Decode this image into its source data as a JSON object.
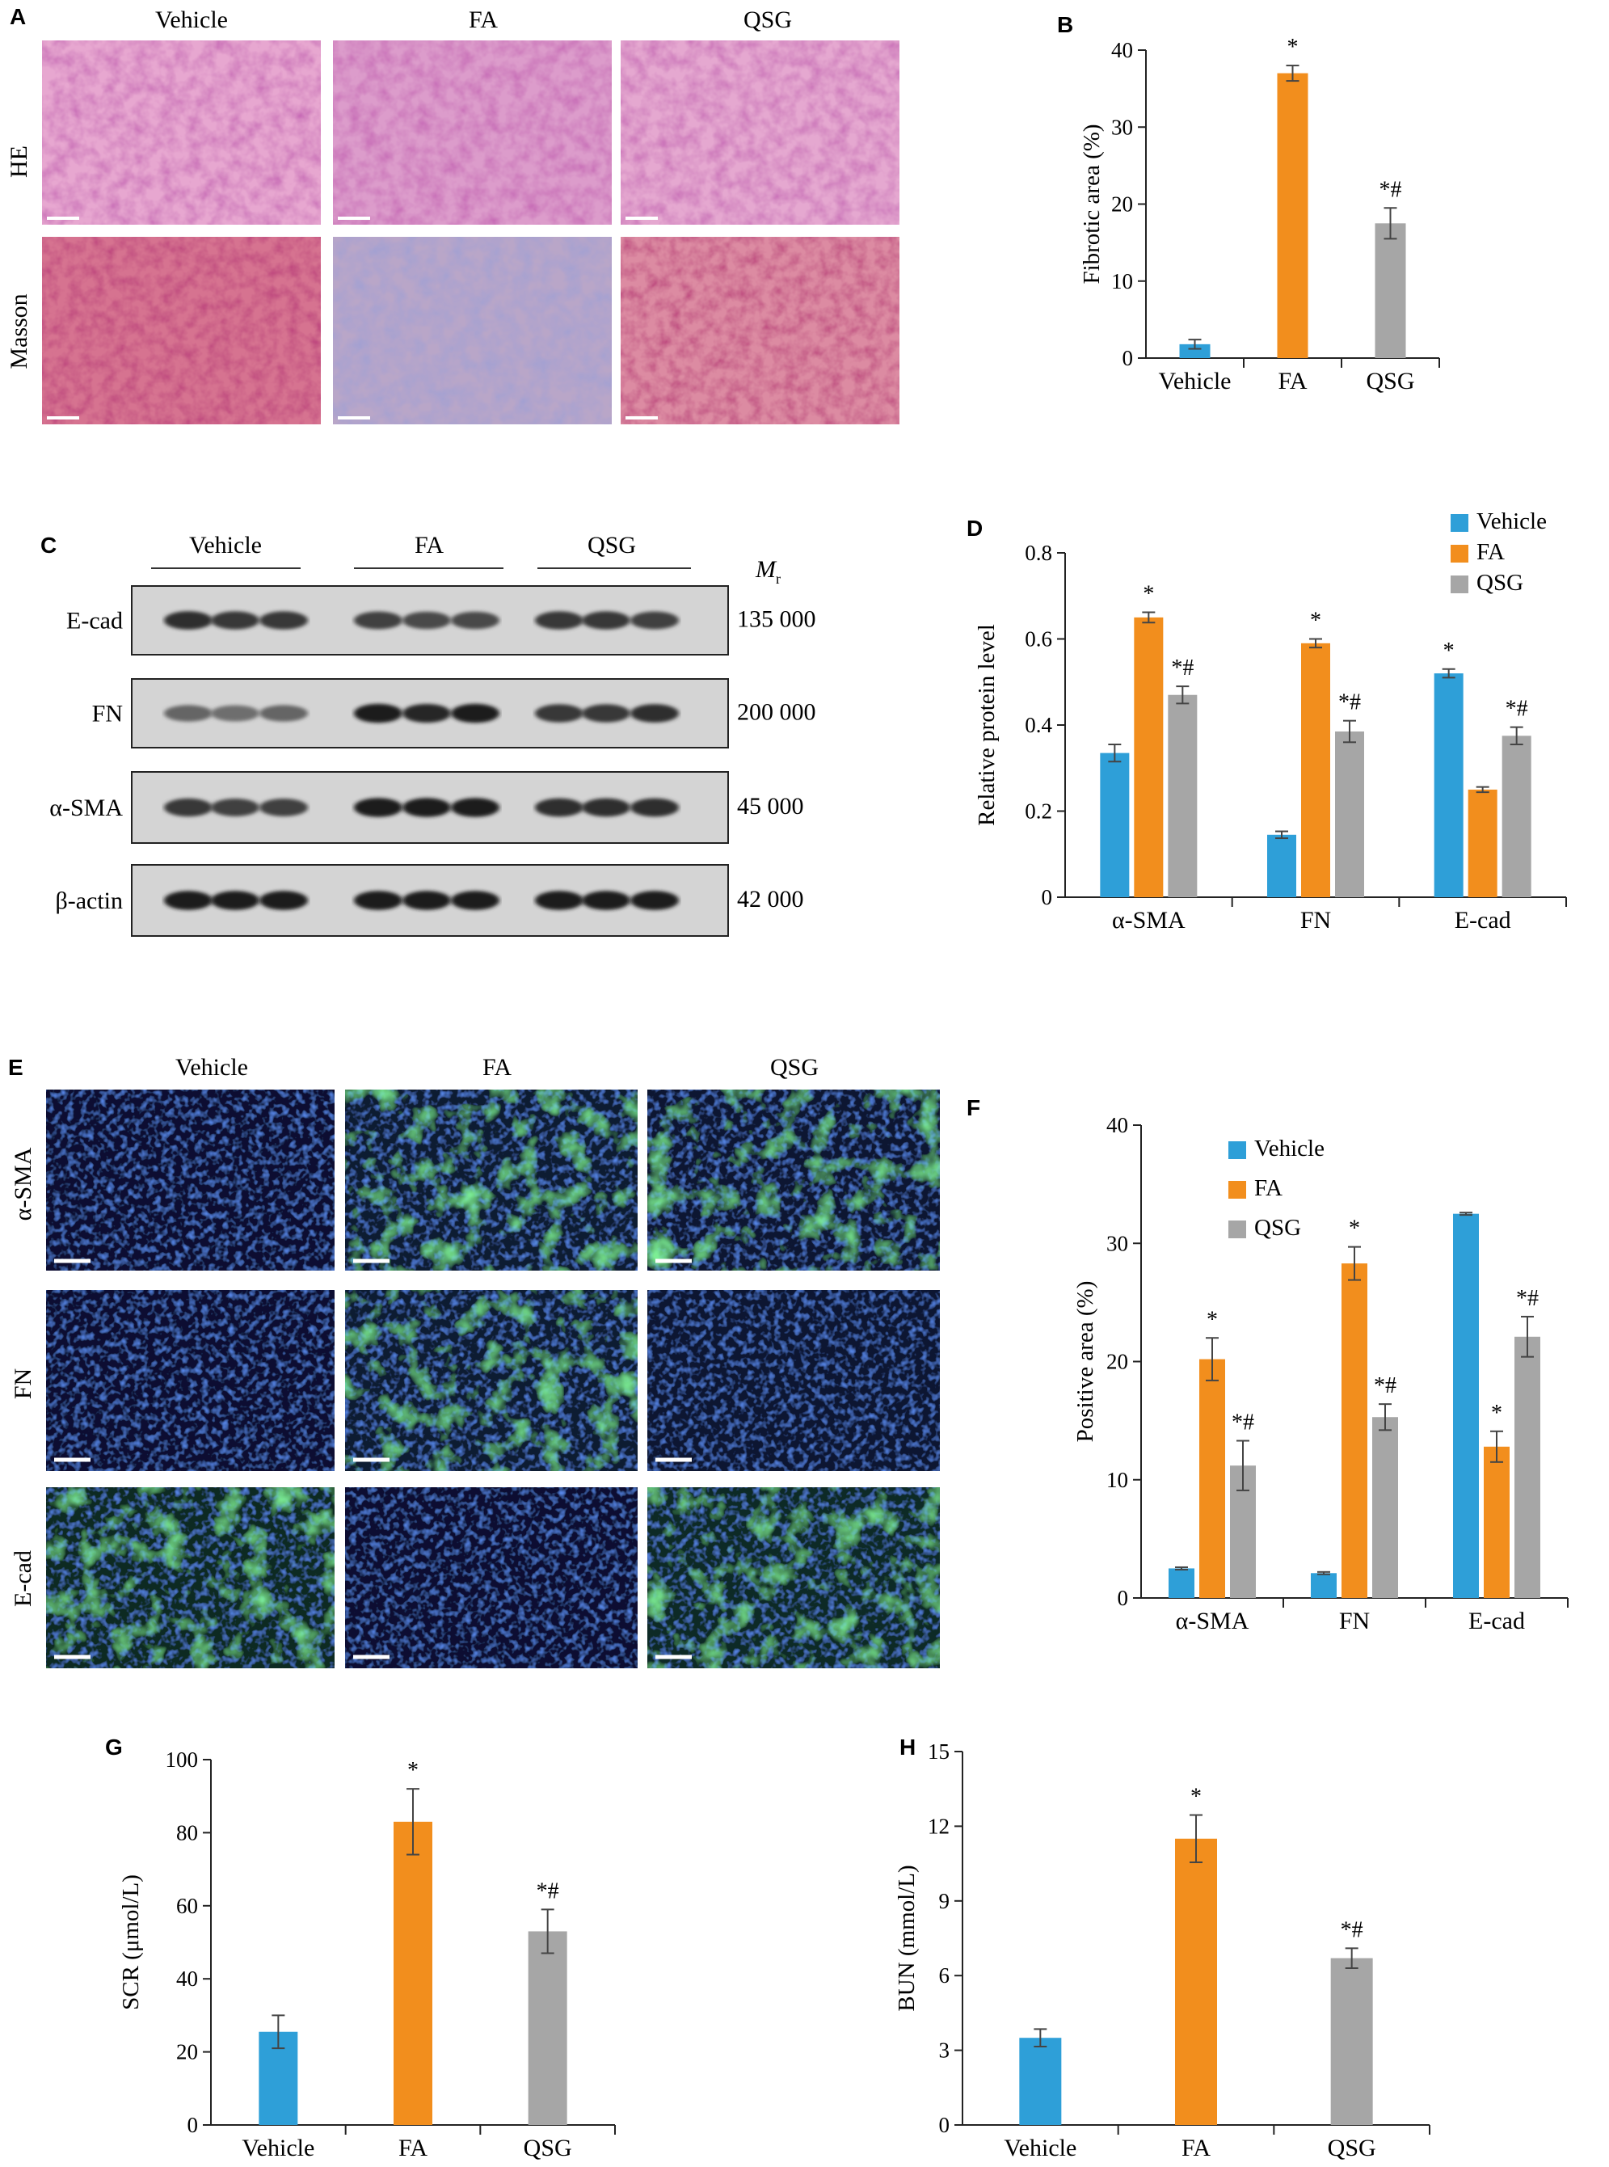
{
  "colors": {
    "vehicle": "#2e9fd8",
    "fa": "#f28e1d",
    "qsg": "#a6a6a6"
  },
  "panel_a": {
    "letter": "A",
    "columns": [
      "Vehicle",
      "FA",
      "QSG"
    ],
    "rows": [
      "HE",
      "Masson"
    ]
  },
  "panel_c": {
    "letter": "C",
    "groups": [
      "Vehicle",
      "FA",
      "QSG"
    ],
    "mr_label": "M",
    "mr_sub": "r",
    "bands": [
      {
        "name": "E-cad",
        "mr": "135 000"
      },
      {
        "name": "FN",
        "mr": "200 000"
      },
      {
        "name": "α-SMA",
        "mr": "45 000"
      },
      {
        "name": "β-actin",
        "mr": "42 000"
      }
    ]
  },
  "panel_e": {
    "letter": "E",
    "columns": [
      "Vehicle",
      "FA",
      "QSG"
    ],
    "rows": [
      "α-SMA",
      "FN",
      "E-cad"
    ]
  },
  "chart_data": [
    {
      "panel": "B",
      "type": "bar",
      "categories": [
        "Vehicle",
        "FA",
        "QSG"
      ],
      "values": [
        1.8,
        37.0,
        17.5
      ],
      "errors": [
        0.6,
        1.0,
        2.0
      ],
      "annotations": [
        "",
        "*",
        "*#"
      ],
      "ylabel": "Fibrotic area (%)",
      "ylim": [
        0,
        40
      ],
      "yticks": [
        0,
        10,
        20,
        30,
        40
      ],
      "grid": false
    },
    {
      "panel": "D",
      "type": "bar",
      "categories": [
        "α-SMA",
        "FN",
        "E-cad"
      ],
      "series": [
        {
          "name": "Vehicle",
          "values": [
            0.335,
            0.145,
            0.52
          ],
          "errors": [
            0.02,
            0.008,
            0.01
          ],
          "annotations": [
            "",
            "",
            "*"
          ]
        },
        {
          "name": "FA",
          "values": [
            0.65,
            0.59,
            0.25
          ],
          "errors": [
            0.012,
            0.01,
            0.006
          ],
          "annotations": [
            "*",
            "*",
            ""
          ]
        },
        {
          "name": "QSG",
          "values": [
            0.47,
            0.385,
            0.375
          ],
          "errors": [
            0.02,
            0.025,
            0.02
          ],
          "annotations": [
            "*#",
            "*#",
            "*#"
          ]
        }
      ],
      "ylabel": "Relative protein level",
      "ylim": [
        0,
        0.8
      ],
      "yticks": [
        0,
        0.2,
        0.4,
        0.6,
        0.8
      ],
      "ytick_labels": [
        "0",
        "0.2",
        "0.4",
        "0.6",
        "0.8"
      ],
      "legend": "top-right",
      "grid": false
    },
    {
      "panel": "F",
      "type": "bar",
      "categories": [
        "α-SMA",
        "FN",
        "E-cad"
      ],
      "series": [
        {
          "name": "Vehicle",
          "values": [
            2.5,
            2.1,
            32.5
          ],
          "errors": [
            0.1,
            0.1,
            0.1
          ],
          "annotations": [
            "",
            "",
            ""
          ]
        },
        {
          "name": "FA",
          "values": [
            20.2,
            28.3,
            12.8
          ],
          "errors": [
            1.8,
            1.4,
            1.3
          ],
          "annotations": [
            "*",
            "*",
            "*"
          ]
        },
        {
          "name": "QSG",
          "values": [
            11.2,
            15.3,
            22.1
          ],
          "errors": [
            2.1,
            1.1,
            1.7
          ],
          "annotations": [
            "*#",
            "*#",
            "*#"
          ]
        }
      ],
      "ylabel": "Positive area (%)",
      "ylim": [
        0,
        40
      ],
      "yticks": [
        0,
        10,
        20,
        30,
        40
      ],
      "legend": "top-left",
      "grid": false
    },
    {
      "panel": "G",
      "type": "bar",
      "categories": [
        "Vehicle",
        "FA",
        "QSG"
      ],
      "values": [
        25.5,
        83.0,
        53.0
      ],
      "errors": [
        4.5,
        9.0,
        6.0
      ],
      "annotations": [
        "",
        "*",
        "*#"
      ],
      "ylabel": "SCR (μmol/L)",
      "ylim": [
        0,
        100
      ],
      "yticks": [
        0,
        20,
        40,
        60,
        80,
        100
      ],
      "grid": false
    },
    {
      "panel": "H",
      "type": "bar",
      "categories": [
        "Vehicle",
        "FA",
        "QSG"
      ],
      "values": [
        3.5,
        11.5,
        6.7
      ],
      "errors": [
        0.35,
        0.95,
        0.4
      ],
      "annotations": [
        "",
        "*",
        "*#"
      ],
      "ylabel": "BUN (mmol/L)",
      "ylim": [
        0,
        15
      ],
      "yticks": [
        0,
        3,
        6,
        9,
        12,
        15
      ],
      "grid": false
    }
  ]
}
